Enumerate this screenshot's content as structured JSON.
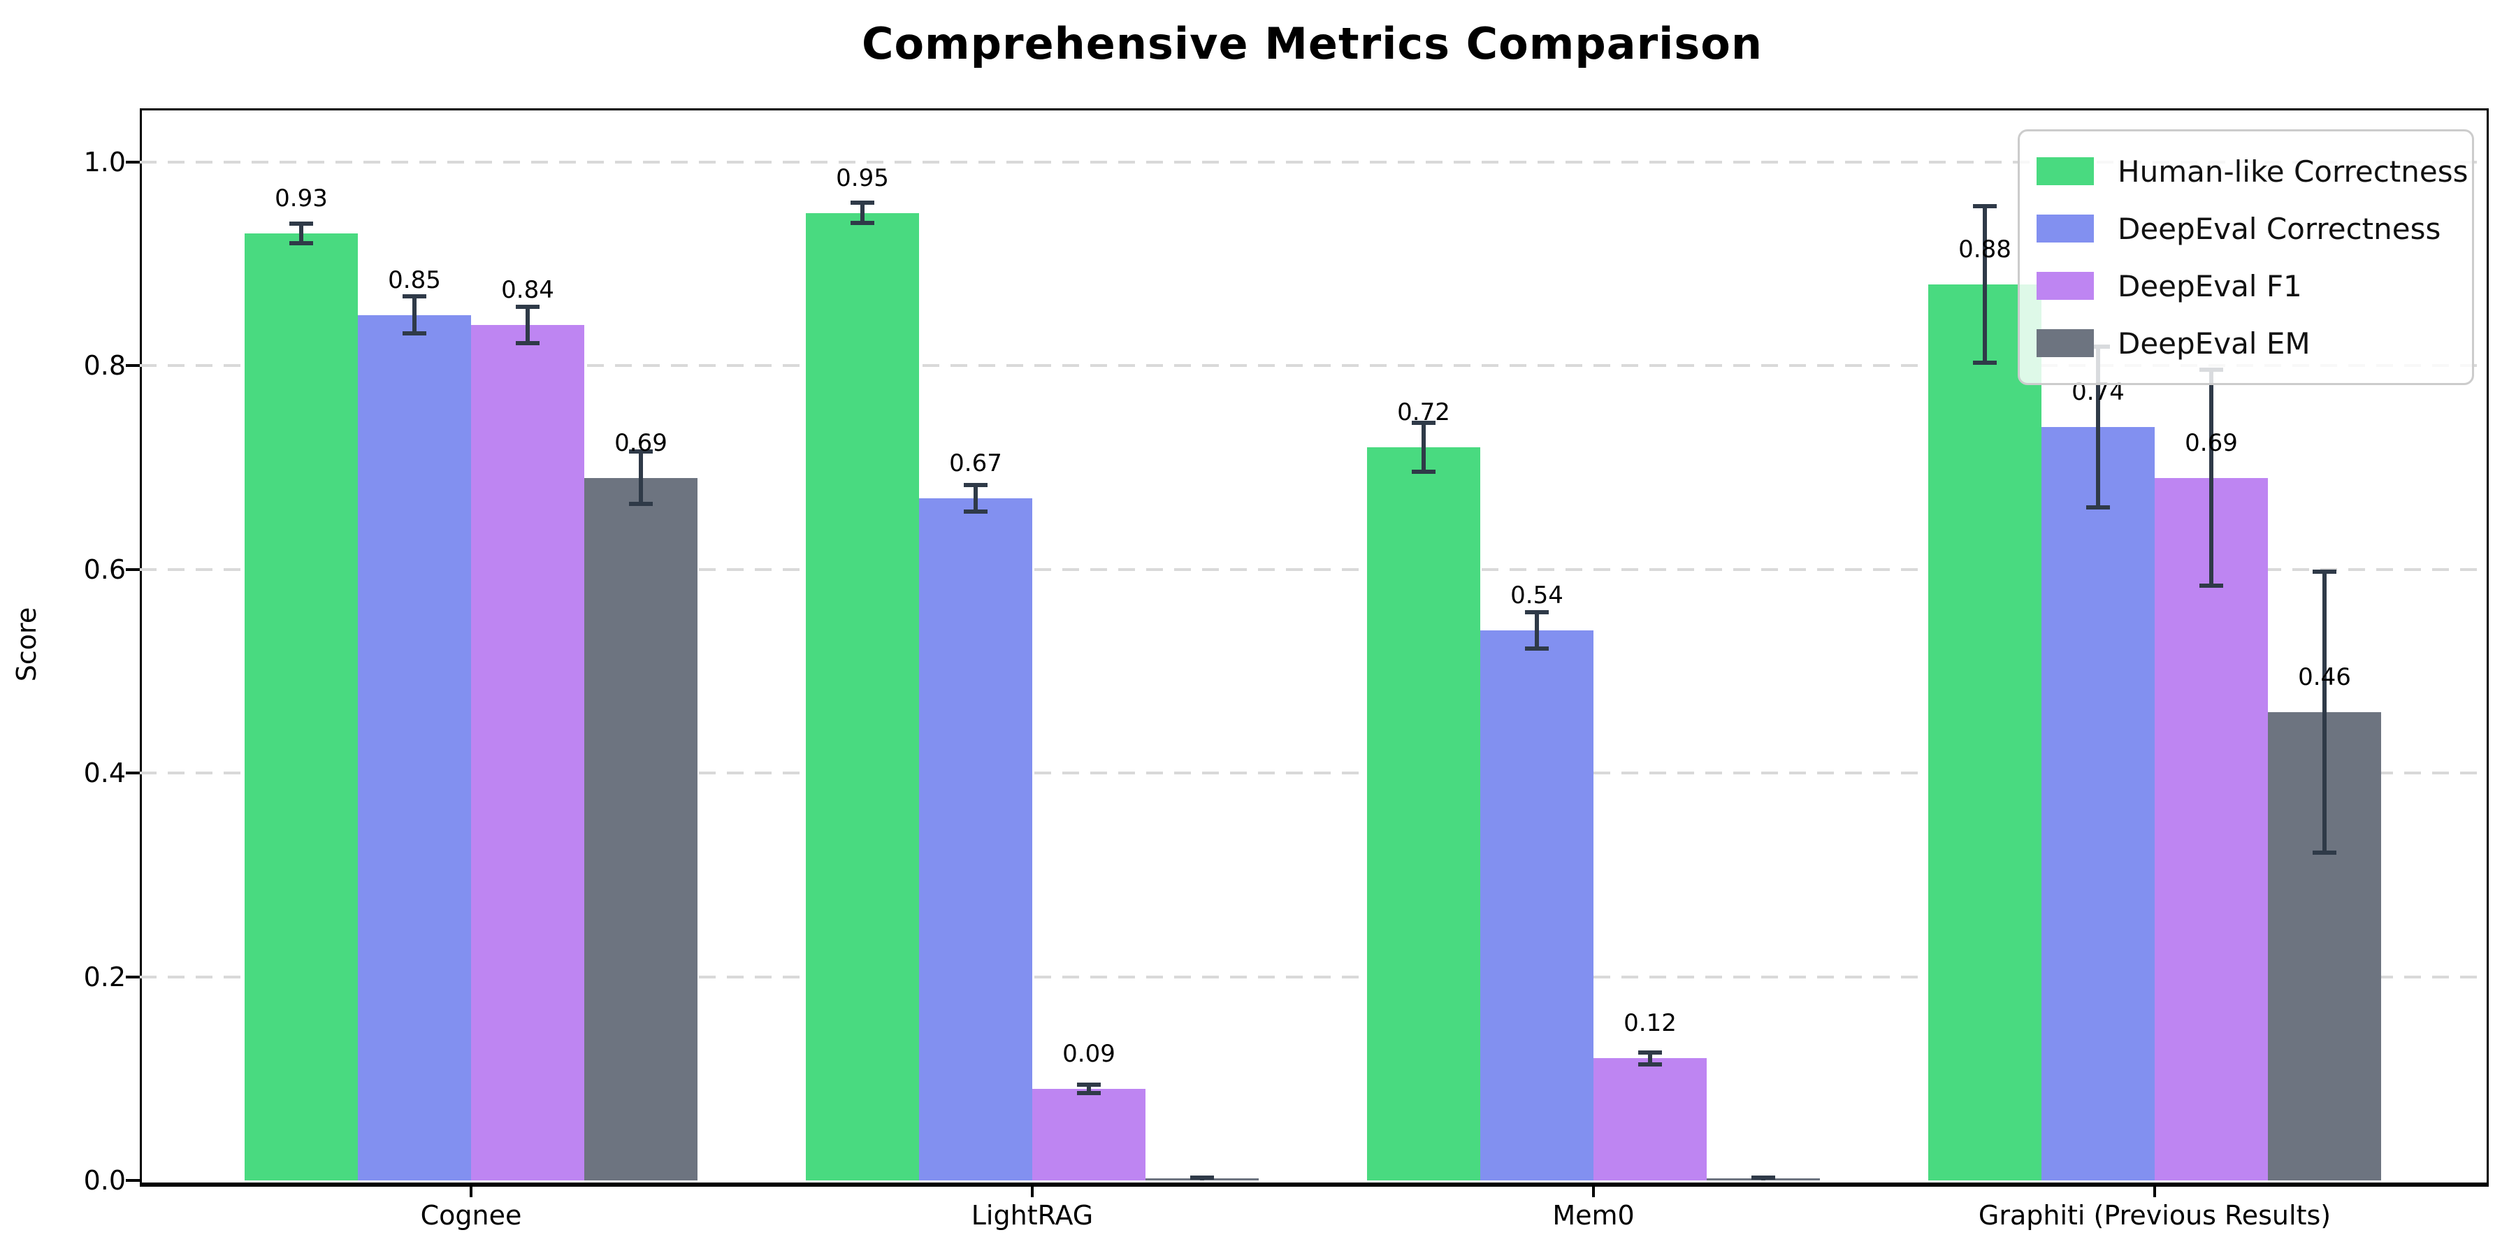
{
  "title": "Comprehensive Metrics Comparison",
  "chart_data": {
    "type": "bar",
    "title": "Comprehensive Metrics Comparison",
    "xlabel": "",
    "ylabel": "Score",
    "categories": [
      "Cognee",
      "LightRAG",
      "Mem0",
      "Graphiti (Previous Results)"
    ],
    "series": [
      {
        "name": "Human-like Correctness",
        "color": "#49da80",
        "values": [
          0.93,
          0.95,
          0.72,
          0.88
        ],
        "errors": [
          0.012,
          0.012,
          0.026,
          0.079
        ],
        "labels": [
          "0.93",
          "0.95",
          "0.72",
          "0.88"
        ]
      },
      {
        "name": "DeepEval Correctness",
        "color": "#8290f0",
        "values": [
          0.85,
          0.67,
          0.54,
          0.74
        ],
        "errors": [
          0.02,
          0.015,
          0.02,
          0.081
        ],
        "labels": [
          "0.85",
          "0.67",
          "0.54",
          "0.74"
        ]
      },
      {
        "name": "DeepEval F1",
        "color": "#be85f2",
        "values": [
          0.84,
          0.09,
          0.12,
          0.69
        ],
        "errors": [
          0.02,
          0.006,
          0.008,
          0.108
        ],
        "labels": [
          "0.84",
          "0.09",
          "0.12",
          "0.69"
        ]
      },
      {
        "name": "DeepEval EM",
        "color": "#6d7480",
        "values": [
          0.69,
          0.002,
          0.002,
          0.46
        ],
        "errors": [
          0.028,
          0.003,
          0.003,
          0.14
        ],
        "labels": [
          "0.69",
          "",
          "",
          "0.46"
        ]
      }
    ],
    "y_ticks": [
      0.0,
      0.2,
      0.4,
      0.6,
      0.8,
      1.0
    ],
    "ylim": [
      0,
      1.053
    ],
    "grid": "horizontal-dashed",
    "legend_position": "upper-right",
    "error_bar_color": "#2f3a48"
  }
}
